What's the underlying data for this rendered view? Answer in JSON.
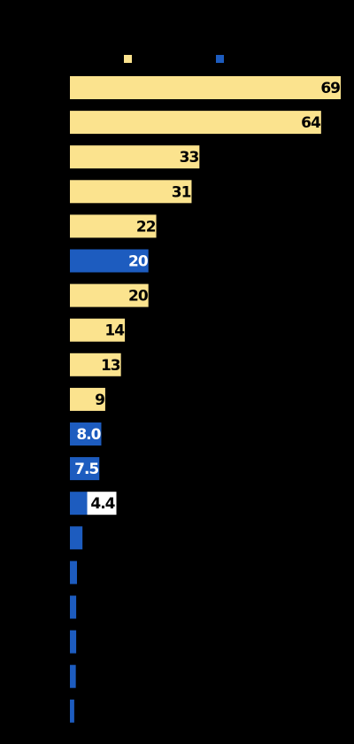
{
  "chart_data": {
    "type": "bar",
    "orientation": "horizontal",
    "legend_placement": "top",
    "grid": false,
    "xlim": [
      0,
      69
    ],
    "colors": {
      "background": "#000000",
      "series_a": "#FBE38E",
      "series_b": "#1D5CBF",
      "label_on_a": "#000000",
      "label_on_b": "#FFFFFF",
      "label_outside": "#000000",
      "label_outside_bg": "#FFFFFF"
    },
    "series": [
      {
        "key": "a"
      },
      {
        "key": "b"
      }
    ],
    "bars": [
      {
        "value": 69,
        "label": "69",
        "series": "a"
      },
      {
        "value": 64,
        "label": "64",
        "series": "a"
      },
      {
        "value": 33,
        "label": "33",
        "series": "a"
      },
      {
        "value": 31,
        "label": "31",
        "series": "a"
      },
      {
        "value": 22,
        "label": "22",
        "series": "a"
      },
      {
        "value": 20,
        "label": "20",
        "series": "b"
      },
      {
        "value": 20,
        "label": "20",
        "series": "a"
      },
      {
        "value": 14,
        "label": "14",
        "series": "a"
      },
      {
        "value": 13,
        "label": "13",
        "series": "a"
      },
      {
        "value": 9,
        "label": "9",
        "series": "a"
      },
      {
        "value": 8.0,
        "label": "8.0",
        "series": "b"
      },
      {
        "value": 7.5,
        "label": "7.5",
        "series": "b"
      },
      {
        "value": 4.4,
        "label": "4.4",
        "series": "b"
      },
      {
        "value": 3.2,
        "label": "",
        "series": "b"
      },
      {
        "value": 1.8,
        "label": "",
        "series": "b"
      },
      {
        "value": 1.6,
        "label": "",
        "series": "b"
      },
      {
        "value": 1.6,
        "label": "",
        "series": "b"
      },
      {
        "value": 1.5,
        "label": "",
        "series": "b"
      },
      {
        "value": 1.1,
        "label": "",
        "series": "b"
      }
    ]
  }
}
